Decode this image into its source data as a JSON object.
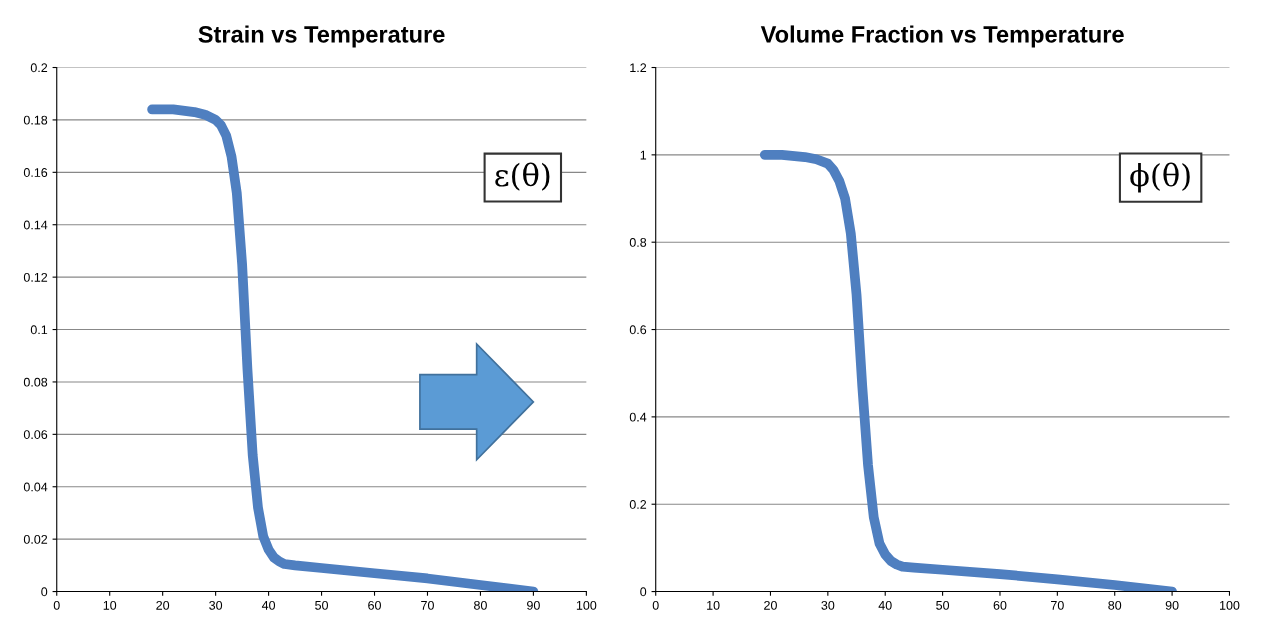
{
  "chart_data": [
    {
      "type": "line",
      "title": "Strain vs Temperature",
      "color": "#4f7fc0",
      "grid": "y",
      "legend": false,
      "x": [
        18,
        22,
        26,
        28,
        30,
        31,
        32,
        33,
        34,
        35,
        36,
        37,
        38,
        39,
        40,
        41,
        42,
        43,
        45,
        50,
        60,
        70,
        80,
        90
      ],
      "values": [
        0.184,
        0.184,
        0.183,
        0.182,
        0.18,
        0.178,
        0.174,
        0.166,
        0.152,
        0.125,
        0.085,
        0.052,
        0.032,
        0.021,
        0.016,
        0.013,
        0.0115,
        0.0105,
        0.01,
        0.009,
        0.007,
        0.005,
        0.0025,
        0.0
      ],
      "xlim": [
        0,
        100
      ],
      "xticks": [
        0,
        10,
        20,
        30,
        40,
        50,
        60,
        70,
        80,
        90,
        100
      ],
      "ylim": [
        0,
        0.2
      ],
      "yticks": [
        0,
        0.02,
        0.04,
        0.06,
        0.08,
        0.1,
        0.12,
        0.14,
        0.16,
        0.18,
        0.2
      ],
      "annotations": [
        "ε(θ)"
      ]
    },
    {
      "type": "line",
      "title": "Volume Fraction vs Temperature",
      "color": "#4f7fc0",
      "grid": "y",
      "legend": false,
      "x": [
        19,
        22,
        26,
        28,
        30,
        31,
        32,
        33,
        34,
        35,
        36,
        37,
        38,
        39,
        40,
        41,
        42,
        43,
        45,
        50,
        60,
        70,
        80,
        90
      ],
      "values": [
        1.0,
        1.0,
        0.995,
        0.99,
        0.98,
        0.965,
        0.94,
        0.9,
        0.82,
        0.68,
        0.47,
        0.29,
        0.17,
        0.11,
        0.085,
        0.07,
        0.062,
        0.057,
        0.055,
        0.05,
        0.04,
        0.028,
        0.015,
        0.0
      ],
      "xlim": [
        0,
        100
      ],
      "xticks": [
        0,
        10,
        20,
        30,
        40,
        50,
        60,
        70,
        80,
        90,
        100
      ],
      "ylim": [
        0,
        1.2
      ],
      "yticks": [
        0,
        0.2,
        0.4,
        0.6,
        0.8,
        1,
        1.2
      ],
      "annotations": [
        "ϕ(θ)"
      ]
    }
  ]
}
